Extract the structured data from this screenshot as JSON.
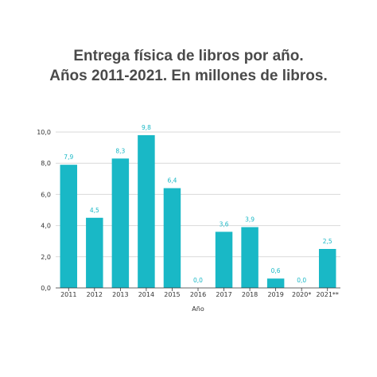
{
  "title_lines": [
    "Entrega física de libros por año.",
    "Años 2011-2021. En millones de libros."
  ],
  "colors": {
    "bar": "#19b8c6",
    "data_label": "#19b8c6",
    "grid": "#d9d9d9",
    "axis": "#333333",
    "title": "#4a4a4a"
  },
  "chart_data": {
    "type": "bar",
    "title": "Entrega física de libros por año. Años 2011-2021. En millones de libros.",
    "xlabel": "Año",
    "ylabel": "",
    "categories": [
      "2011",
      "2012",
      "2013",
      "2014",
      "2015",
      "2016",
      "2017",
      "2018",
      "2019",
      "2020*",
      "2021**"
    ],
    "values": [
      7.9,
      4.5,
      8.3,
      9.8,
      6.4,
      0.0,
      3.6,
      3.9,
      0.6,
      0.0,
      2.5
    ],
    "value_labels": [
      "7,9",
      "4,5",
      "8,3",
      "9,8",
      "6,4",
      "0,0",
      "3,6",
      "3,9",
      "0,6",
      "0,0",
      "2,5"
    ],
    "ylim": [
      0,
      10
    ],
    "yticks": [
      0,
      2,
      4,
      6,
      8,
      10
    ],
    "ytick_labels": [
      "0,0",
      "2,0",
      "4,0",
      "6,0",
      "8,0",
      "10,0"
    ],
    "grid": true,
    "legend": "none"
  }
}
